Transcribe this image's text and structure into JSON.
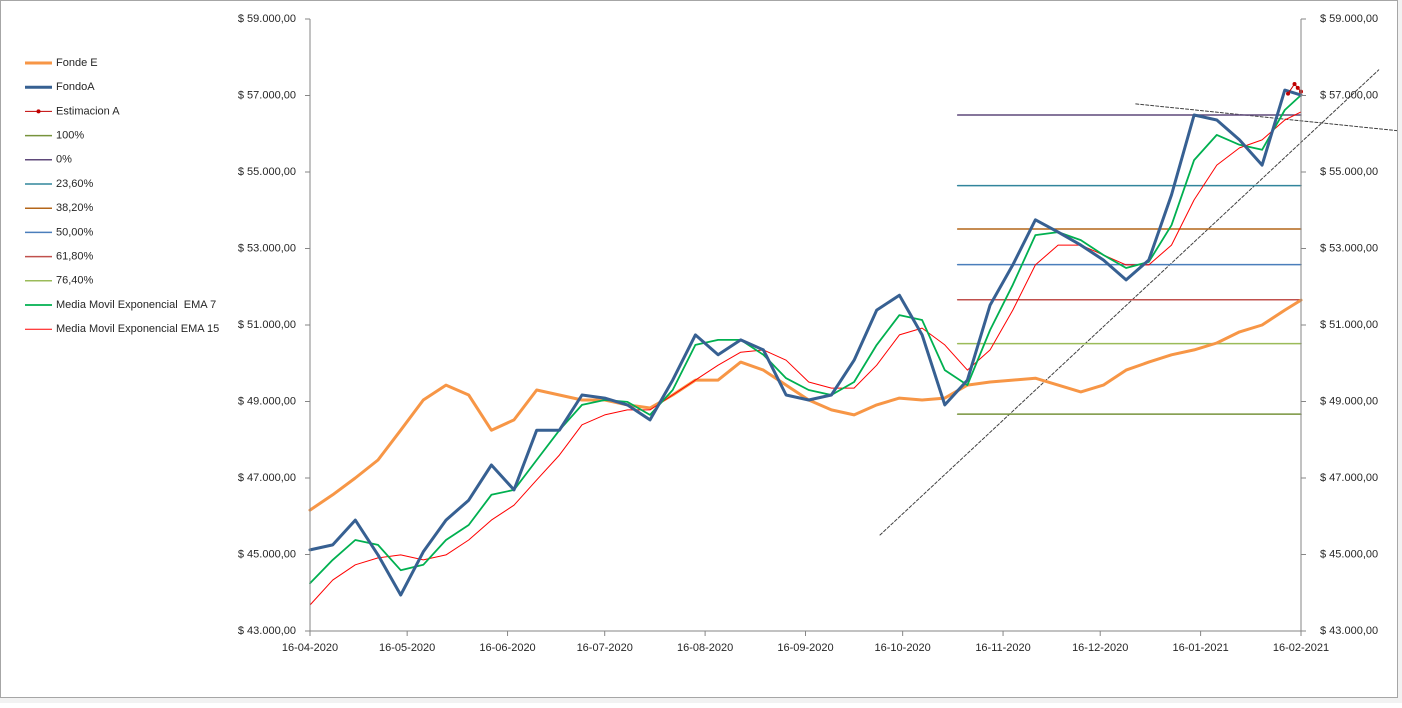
{
  "chart_data": {
    "type": "line",
    "x": [
      "16-04-2020",
      "23-04-2020",
      "30-04-2020",
      "07-05-2020",
      "14-05-2020",
      "21-05-2020",
      "28-05-2020",
      "04-06-2020",
      "11-06-2020",
      "18-06-2020",
      "25-06-2020",
      "02-07-2020",
      "09-07-2020",
      "16-07-2020",
      "23-07-2020",
      "30-07-2020",
      "06-08-2020",
      "13-08-2020",
      "20-08-2020",
      "27-08-2020",
      "03-09-2020",
      "10-09-2020",
      "17-09-2020",
      "24-09-2020",
      "01-10-2020",
      "08-10-2020",
      "15-10-2020",
      "22-10-2020",
      "29-10-2020",
      "05-11-2020",
      "12-11-2020",
      "19-11-2020",
      "26-11-2020",
      "03-12-2020",
      "10-12-2020",
      "17-12-2020",
      "24-12-2020",
      "31-12-2020",
      "07-01-2021",
      "14-01-2021",
      "21-01-2021",
      "28-01-2021",
      "04-02-2021",
      "11-02-2021",
      "16-02-2021"
    ],
    "series": [
      {
        "name": "Fonde E",
        "color": "#f79646",
        "width": 3,
        "values": [
          46160,
          46560,
          47000,
          47470,
          48250,
          49040,
          49430,
          49170,
          48250,
          48520,
          49300,
          49170,
          49040,
          49040,
          48910,
          48830,
          49170,
          49560,
          49560,
          50030,
          49820,
          49430,
          49040,
          48780,
          48650,
          48910,
          49090,
          49040,
          49090,
          49430,
          49510,
          49560,
          49610,
          49430,
          49250,
          49430,
          49820,
          50030,
          50220,
          50350,
          50530,
          50820,
          51000,
          51390,
          51650
        ]
      },
      {
        "name": "FondoA",
        "color": "#376092",
        "width": 3,
        "values": [
          45120,
          45250,
          45900,
          44990,
          43940,
          45070,
          45900,
          46420,
          47340,
          46690,
          48250,
          48250,
          49170,
          49090,
          48910,
          48520,
          49560,
          50740,
          50220,
          50610,
          50350,
          49170,
          49040,
          49170,
          50080,
          51390,
          51780,
          50740,
          48910,
          49560,
          51520,
          52570,
          53750,
          53430,
          53090,
          52700,
          52180,
          52700,
          54400,
          56490,
          56360,
          55840,
          55180,
          57140,
          57010
        ]
      },
      {
        "name": "Estimacion A",
        "color": "#c00000",
        "width": 1,
        "marker": true,
        "x": [
          "12-02-2021",
          "14-02-2021",
          "15-02-2021",
          "16-02-2021"
        ],
        "values": [
          57050,
          57300,
          57200,
          57100
        ]
      },
      {
        "name": "100%",
        "color": "#77933c",
        "width": 1.5,
        "x": [
          "02-11-2020",
          "16-02-2021"
        ],
        "values": [
          48670,
          48670
        ]
      },
      {
        "name": "0%",
        "color": "#5f497a",
        "width": 1.5,
        "x": [
          "02-11-2020",
          "16-02-2021"
        ],
        "values": [
          56490,
          56490
        ]
      },
      {
        "name": "23,60%",
        "color": "#31859c",
        "width": 1.5,
        "x": [
          "02-11-2020",
          "16-02-2021"
        ],
        "values": [
          54645,
          54645
        ]
      },
      {
        "name": "38,20%",
        "color": "#b46619",
        "width": 1.5,
        "x": [
          "02-11-2020",
          "16-02-2021"
        ],
        "values": [
          53510,
          53510
        ]
      },
      {
        "name": "50,00%",
        "color": "#4a7ebb",
        "width": 1.5,
        "x": [
          "02-11-2020",
          "16-02-2021"
        ],
        "values": [
          52580,
          52580
        ]
      },
      {
        "name": "61,80%",
        "color": "#c0504d",
        "width": 1.5,
        "x": [
          "02-11-2020",
          "16-02-2021"
        ],
        "values": [
          51660,
          51660
        ]
      },
      {
        "name": "76,40%",
        "color": "#9bbb59",
        "width": 1.5,
        "x": [
          "02-11-2020",
          "16-02-2021"
        ],
        "values": [
          50515,
          50515
        ]
      },
      {
        "name": "Media Movil Exponencial  EMA 7",
        "color": "#00b050",
        "width": 1.8,
        "values": [
          44250,
          44860,
          45380,
          45250,
          44590,
          44730,
          45380,
          45770,
          46560,
          46690,
          47470,
          48250,
          48910,
          49040,
          48990,
          48650,
          49300,
          50480,
          50610,
          50610,
          50220,
          49610,
          49300,
          49170,
          49510,
          50480,
          51260,
          51130,
          49820,
          49430,
          50870,
          52050,
          53350,
          53430,
          53220,
          52830,
          52490,
          52650,
          53610,
          55310,
          55970,
          55710,
          55580,
          56620,
          57010
        ]
      },
      {
        "name": "Media Movil Exponencial EMA 15",
        "color": "#ff0000",
        "width": 1,
        "values": [
          43680,
          44330,
          44730,
          44910,
          44990,
          44860,
          44990,
          45380,
          45900,
          46290,
          46950,
          47600,
          48390,
          48650,
          48780,
          48780,
          49170,
          49560,
          49950,
          50290,
          50350,
          50080,
          49510,
          49350,
          49350,
          49950,
          50740,
          50920,
          50480,
          49820,
          50350,
          51390,
          52570,
          53090,
          53090,
          52830,
          52570,
          52570,
          53090,
          54270,
          55180,
          55630,
          55840,
          56360,
          56570
        ]
      }
    ],
    "trendlines": [
      {
        "color": "#404040",
        "x": [
          "09-10-2020",
          "12-03-2021"
        ],
        "values": [
          45510,
          57670
        ]
      },
      {
        "color": "#404040",
        "x": [
          "27-12-2020",
          "19-03-2021"
        ],
        "values": [
          56780,
          56070
        ]
      }
    ],
    "xlim": [
      "16-04-2020",
      "16-02-2021"
    ],
    "xticks": [
      "16-04-2020",
      "16-05-2020",
      "16-06-2020",
      "16-07-2020",
      "16-08-2020",
      "16-09-2020",
      "16-10-2020",
      "16-11-2020",
      "16-12-2020",
      "16-01-2021",
      "16-02-2021"
    ],
    "ylim": [
      43000,
      59000
    ],
    "yticks": [
      {
        "value": 43000,
        "label": "$ 43.000,00"
      },
      {
        "value": 45000,
        "label": "$ 45.000,00"
      },
      {
        "value": 47000,
        "label": "$ 47.000,00"
      },
      {
        "value": 49000,
        "label": "$ 49.000,00"
      },
      {
        "value": 51000,
        "label": "$ 51.000,00"
      },
      {
        "value": 53000,
        "label": "$ 53.000,00"
      },
      {
        "value": 55000,
        "label": "$ 55.000,00"
      },
      {
        "value": 57000,
        "label": "$ 57.000,00"
      },
      {
        "value": 59000,
        "label": "$ 59.000,00"
      }
    ],
    "y2lim": [
      43000,
      59000
    ],
    "y2ticks": [
      {
        "value": 43000,
        "label": "$ 43.000,00"
      },
      {
        "value": 45000,
        "label": "$ 45.000,00"
      },
      {
        "value": 47000,
        "label": "$ 47.000,00"
      },
      {
        "value": 49000,
        "label": "$ 49.000,00"
      },
      {
        "value": 51000,
        "label": "$ 51.000,00"
      },
      {
        "value": 53000,
        "label": "$ 53.000,00"
      },
      {
        "value": 55000,
        "label": "$ 55.000,00"
      },
      {
        "value": 57000,
        "label": "$ 57.000,00"
      },
      {
        "value": 59000,
        "label": "$ 59.000,00"
      }
    ],
    "legend": "left"
  }
}
